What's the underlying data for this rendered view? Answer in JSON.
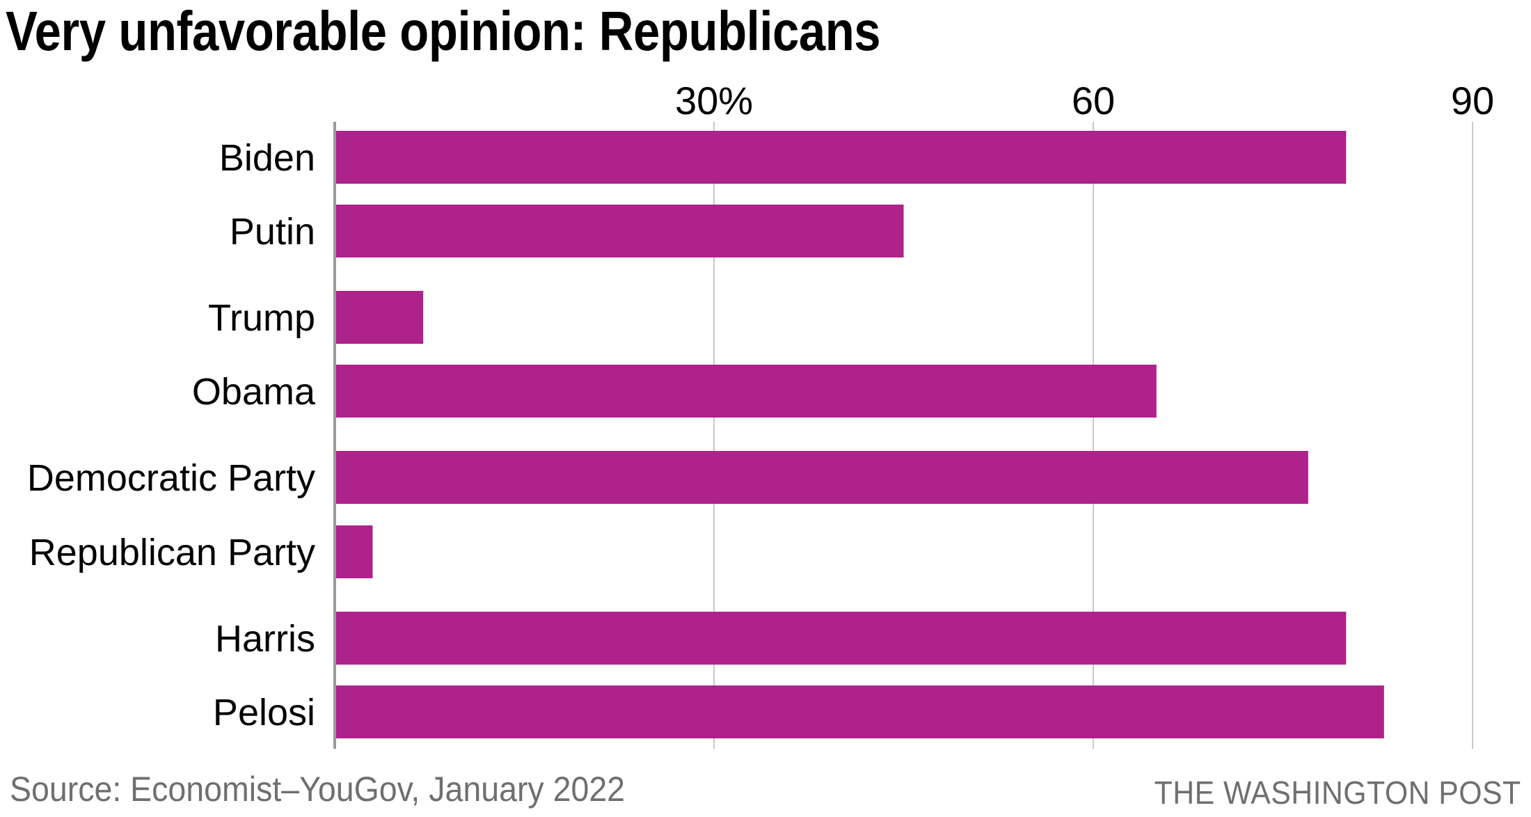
{
  "title": {
    "lead": "Very unfavorable opinion:",
    "subject": "Republicans"
  },
  "footer": {
    "source": "Source: Economist–YouGov, January 2022",
    "credit": "THE WASHINGTON POST"
  },
  "chart_data": {
    "type": "bar",
    "orientation": "horizontal",
    "title": "Very unfavorable opinion: Republicans",
    "xlabel": "",
    "ylabel": "",
    "categories": [
      "Biden",
      "Putin",
      "Trump",
      "Obama",
      "Democratic Party",
      "Republican Party",
      "Harris",
      "Pelosi"
    ],
    "series": [
      {
        "name": "Republicans",
        "values": [
          80,
          45,
          7,
          65,
          77,
          3,
          80,
          83
        ],
        "color": "#ad228b"
      }
    ],
    "xlim": [
      0,
      90
    ],
    "xticks": [
      30,
      60,
      90
    ],
    "xtick_labels": [
      "30%",
      "60",
      "90"
    ],
    "grid": true,
    "grid_color": "#c8c8c8",
    "axis_color": "#9a9a9a",
    "legend": "none",
    "tick_position": "top",
    "source": "Source: Economist–YouGov, January 2022",
    "credit": "THE WASHINGTON POST"
  }
}
